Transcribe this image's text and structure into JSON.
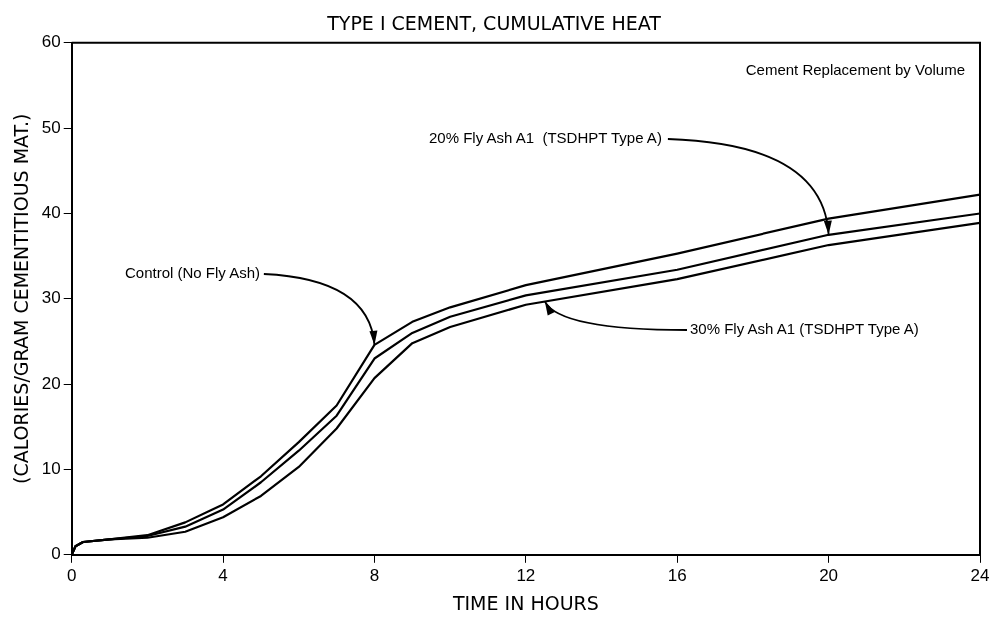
{
  "chart_data": {
    "type": "line",
    "title": "TYPE I CEMENT, CUMULATIVE HEAT",
    "xlabel": "TIME IN HOURS",
    "ylabel": "(CALORIES/GRAM CEMENTITIOUS MAT.)",
    "xlim": [
      0,
      24
    ],
    "xticks": [
      0,
      4,
      8,
      12,
      16,
      20,
      24
    ],
    "ylim": [
      0,
      60
    ],
    "yticks": [
      0,
      10,
      20,
      30,
      40,
      50,
      60
    ],
    "grid": false,
    "legend": false,
    "marker": "none",
    "line_style": "solid",
    "x": [
      0,
      0.1,
      0.3,
      1,
      2,
      3,
      4,
      5,
      6,
      7,
      8,
      9,
      10,
      12,
      16,
      20,
      24
    ],
    "series": [
      {
        "color": "#000000",
        "values": [
          0,
          1,
          1.5,
          1.8,
          2.3,
          3.8,
          5.9,
          9.2,
          13.2,
          17.5,
          24.6,
          27.3,
          29.0,
          31.6,
          35.3,
          39.4,
          42.2
        ]
      },
      {
        "color": "#000000",
        "values": [
          0,
          1,
          1.5,
          1.8,
          2.2,
          3.3,
          5.3,
          8.5,
          12.2,
          16.3,
          23.0,
          26.0,
          27.9,
          30.4,
          33.4,
          37.5,
          40.0
        ]
      },
      {
        "color": "#000000",
        "values": [
          0,
          1,
          1.5,
          1.8,
          2.0,
          2.7,
          4.4,
          6.9,
          10.3,
          14.8,
          20.7,
          24.8,
          26.7,
          29.3,
          32.3,
          36.3,
          38.9
        ]
      }
    ],
    "annotations": [
      "Cement Replacement by Volume",
      {
        "text": "Control (No Fly Ash)",
        "x": 8,
        "y": 24.6
      },
      {
        "text": "20% Fly Ash A1  (TSDHPT Type A)",
        "x": 20,
        "y": 37.5
      },
      {
        "text": "30% Fly Ash A1 (TSDHPT Type A)",
        "x": 12.5,
        "y": 29.7
      }
    ]
  }
}
